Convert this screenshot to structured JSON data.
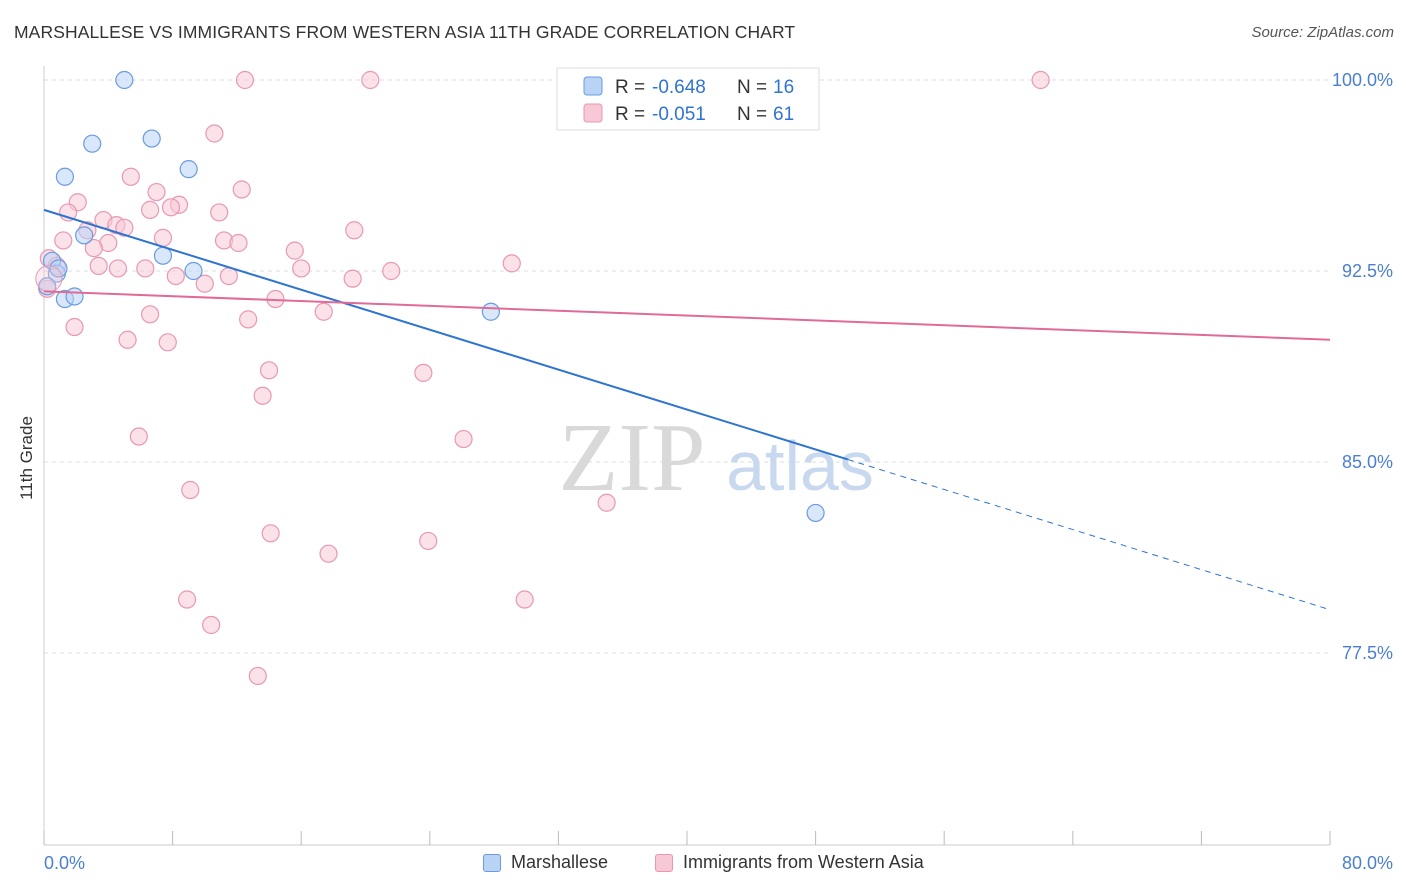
{
  "header": {
    "title": "MARSHALLESE VS IMMIGRANTS FROM WESTERN ASIA 11TH GRADE CORRELATION CHART",
    "source": "Source: ZipAtlas.com"
  },
  "colors": {
    "blue": "#6a9be0",
    "blue_fill": "#b9d3f5",
    "blue_line": "#2f74d0",
    "pink": "#e898b2",
    "pink_fill": "#f7c8d6",
    "pink_line": "#e06b98",
    "axis_text": "#4a7fd0",
    "grid": "#dddddd"
  },
  "watermark": {
    "zip": "ZIP",
    "atlas": "atlas"
  },
  "stats": {
    "r_label": "R = ",
    "n_label": "N = ",
    "rows": [
      {
        "r": "-0.648",
        "n": "16"
      },
      {
        "r": "-0.051",
        "n": "61"
      }
    ]
  },
  "chart_data": {
    "type": "scatter",
    "title": "MARSHALLESE VS IMMIGRANTS FROM WESTERN ASIA 11TH GRADE CORRELATION CHART",
    "xlabel": "",
    "ylabel": "11th Grade",
    "xlim": [
      0,
      80
    ],
    "ylim": [
      70.0,
      100.7
    ],
    "x_tick_labels": [
      "0.0%",
      "80.0%"
    ],
    "y_ticks": [
      77.5,
      85.0,
      92.5,
      100.0
    ],
    "y_tick_labels": [
      "77.5%",
      "85.0%",
      "92.5%",
      "100.0%"
    ],
    "grid": true,
    "legend_position": "bottom-center",
    "series": [
      {
        "name": "Marshallese",
        "points": [
          [
            5.0,
            100.0
          ],
          [
            3.0,
            97.5
          ],
          [
            6.7,
            97.7
          ],
          [
            1.3,
            96.2
          ],
          [
            9.0,
            96.5
          ],
          [
            2.5,
            93.9
          ],
          [
            0.5,
            92.9
          ],
          [
            0.8,
            92.4
          ],
          [
            0.9,
            92.6
          ],
          [
            7.4,
            93.1
          ],
          [
            9.3,
            92.5
          ],
          [
            0.2,
            91.9
          ],
          [
            1.3,
            91.4
          ],
          [
            1.9,
            91.5
          ],
          [
            27.8,
            90.9
          ],
          [
            48.0,
            83.0
          ]
        ],
        "trend": {
          "x0": 0.0,
          "y0": 94.9,
          "x1": 50.0,
          "y1": 85.1,
          "dash_x1": 80.0,
          "dash_y1": 79.2
        }
      },
      {
        "name": "Immigrants from Western Asia",
        "points": [
          [
            12.5,
            100.0
          ],
          [
            20.3,
            100.0
          ],
          [
            44.0,
            100.0
          ],
          [
            62.0,
            100.0
          ],
          [
            10.6,
            97.9
          ],
          [
            5.4,
            96.2
          ],
          [
            7.0,
            95.6
          ],
          [
            12.3,
            95.7
          ],
          [
            2.1,
            95.2
          ],
          [
            8.4,
            95.1
          ],
          [
            6.6,
            94.9
          ],
          [
            7.9,
            95.0
          ],
          [
            1.5,
            94.8
          ],
          [
            10.9,
            94.8
          ],
          [
            3.7,
            94.5
          ],
          [
            4.5,
            94.3
          ],
          [
            5.0,
            94.2
          ],
          [
            2.7,
            94.1
          ],
          [
            19.3,
            94.1
          ],
          [
            1.2,
            93.7
          ],
          [
            7.4,
            93.8
          ],
          [
            4.0,
            93.6
          ],
          [
            11.2,
            93.7
          ],
          [
            12.1,
            93.6
          ],
          [
            3.1,
            93.4
          ],
          [
            15.6,
            93.3
          ],
          [
            0.3,
            93.0
          ],
          [
            0.8,
            92.7
          ],
          [
            3.4,
            92.7
          ],
          [
            4.6,
            92.6
          ],
          [
            6.3,
            92.6
          ],
          [
            16.0,
            92.6
          ],
          [
            21.6,
            92.5
          ],
          [
            29.1,
            92.8
          ],
          [
            8.2,
            92.3
          ],
          [
            11.5,
            92.3
          ],
          [
            19.2,
            92.2
          ],
          [
            0.2,
            91.8
          ],
          [
            10.0,
            92.0
          ],
          [
            14.4,
            91.4
          ],
          [
            6.6,
            90.8
          ],
          [
            17.4,
            90.9
          ],
          [
            12.7,
            90.6
          ],
          [
            1.9,
            90.3
          ],
          [
            5.2,
            89.8
          ],
          [
            7.7,
            89.7
          ],
          [
            14.0,
            88.6
          ],
          [
            23.6,
            88.5
          ],
          [
            13.6,
            87.6
          ],
          [
            5.9,
            86.0
          ],
          [
            26.1,
            85.9
          ],
          [
            9.1,
            83.9
          ],
          [
            35.0,
            83.4
          ],
          [
            14.1,
            82.2
          ],
          [
            23.9,
            81.9
          ],
          [
            17.7,
            81.4
          ],
          [
            8.9,
            79.6
          ],
          [
            29.9,
            79.6
          ],
          [
            10.4,
            78.6
          ],
          [
            13.3,
            76.6
          ],
          [
            44.5,
            100.0
          ]
        ],
        "trend": {
          "x0": 0.0,
          "y0": 91.7,
          "x1": 80.0,
          "y1": 89.8
        }
      }
    ]
  }
}
